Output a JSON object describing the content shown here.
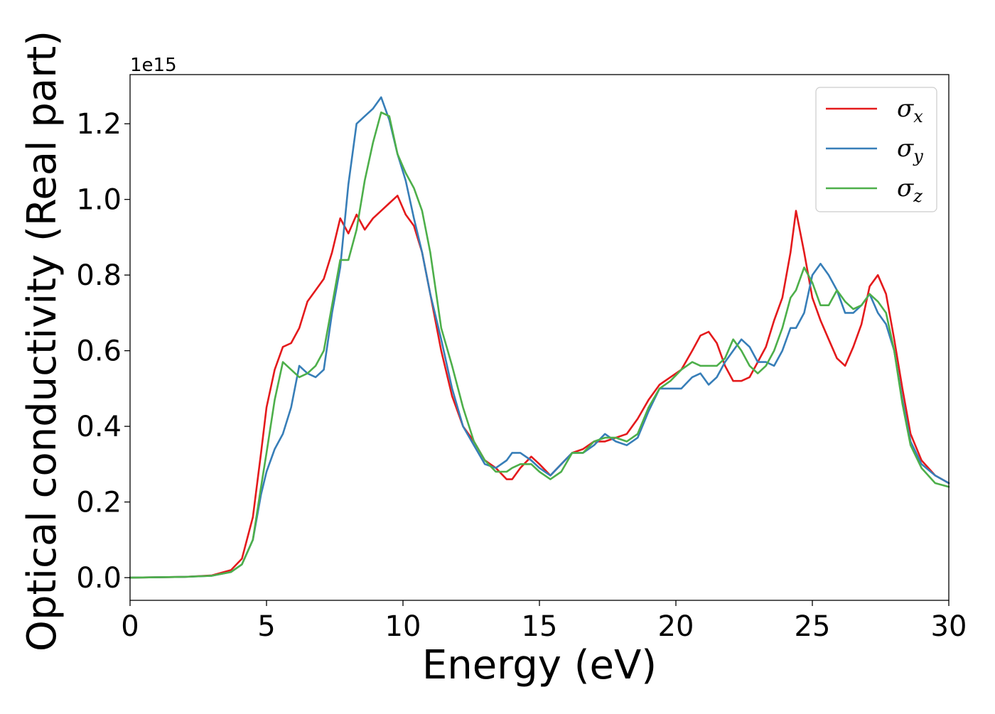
{
  "chart_data": {
    "type": "line",
    "xlabel": "Energy (eV)",
    "ylabel": "Optical conductivity (Real part)",
    "y_offset_text": "1e15",
    "xlim": [
      0,
      30
    ],
    "ylim": [
      -0.06,
      1.33
    ],
    "x_ticks": [
      0,
      5,
      10,
      15,
      20,
      25,
      30
    ],
    "x_tick_labels": [
      "0",
      "5",
      "10",
      "15",
      "20",
      "25",
      "30"
    ],
    "y_ticks": [
      0.0,
      0.2,
      0.4,
      0.6,
      0.8,
      1.0,
      1.2
    ],
    "y_tick_labels": [
      "0.0",
      "0.2",
      "0.4",
      "0.6",
      "0.8",
      "1.0",
      "1.2"
    ],
    "grid": false,
    "legend_position": "top-right",
    "series": [
      {
        "name": "σx",
        "symbol": "σ",
        "subscript": "x",
        "color": "#e41a1c",
        "x": [
          0,
          2,
          3,
          3.7,
          4.1,
          4.5,
          4.8,
          5.0,
          5.3,
          5.6,
          5.9,
          6.2,
          6.5,
          6.8,
          7.1,
          7.4,
          7.7,
          8.0,
          8.3,
          8.6,
          8.9,
          9.2,
          9.5,
          9.8,
          10.1,
          10.4,
          10.7,
          11.0,
          11.4,
          11.8,
          12.2,
          12.6,
          13.0,
          13.4,
          13.8,
          14.0,
          14.3,
          14.7,
          15.0,
          15.4,
          15.8,
          16.2,
          16.6,
          17.0,
          17.4,
          17.8,
          18.2,
          18.6,
          19.0,
          19.4,
          19.8,
          20.2,
          20.6,
          20.9,
          21.2,
          21.5,
          21.8,
          22.1,
          22.4,
          22.7,
          23.0,
          23.3,
          23.6,
          23.9,
          24.2,
          24.4,
          24.7,
          25.0,
          25.3,
          25.6,
          25.9,
          26.2,
          26.5,
          26.8,
          27.1,
          27.4,
          27.7,
          28.0,
          28.3,
          28.6,
          29.0,
          29.5,
          30.0
        ],
        "y": [
          0.0,
          0.002,
          0.006,
          0.02,
          0.05,
          0.16,
          0.33,
          0.45,
          0.55,
          0.61,
          0.62,
          0.66,
          0.73,
          0.76,
          0.79,
          0.86,
          0.95,
          0.91,
          0.96,
          0.92,
          0.95,
          0.97,
          0.99,
          1.01,
          0.96,
          0.93,
          0.86,
          0.75,
          0.6,
          0.48,
          0.4,
          0.36,
          0.31,
          0.29,
          0.26,
          0.26,
          0.29,
          0.32,
          0.3,
          0.27,
          0.3,
          0.33,
          0.34,
          0.36,
          0.36,
          0.37,
          0.38,
          0.42,
          0.47,
          0.51,
          0.53,
          0.55,
          0.6,
          0.64,
          0.65,
          0.62,
          0.56,
          0.52,
          0.52,
          0.53,
          0.57,
          0.61,
          0.68,
          0.74,
          0.86,
          0.97,
          0.86,
          0.74,
          0.68,
          0.63,
          0.58,
          0.56,
          0.61,
          0.67,
          0.77,
          0.8,
          0.75,
          0.63,
          0.5,
          0.38,
          0.31,
          0.27,
          0.25
        ]
      },
      {
        "name": "σy",
        "symbol": "σ",
        "subscript": "y",
        "color": "#377eb8",
        "x": [
          0,
          2,
          3,
          3.7,
          4.1,
          4.5,
          4.8,
          5.0,
          5.3,
          5.6,
          5.9,
          6.2,
          6.5,
          6.8,
          7.1,
          7.4,
          7.7,
          8.0,
          8.3,
          8.6,
          8.9,
          9.2,
          9.5,
          9.8,
          10.1,
          10.4,
          10.7,
          11.0,
          11.4,
          11.8,
          12.2,
          12.6,
          13.0,
          13.4,
          13.8,
          14.0,
          14.3,
          14.7,
          15.0,
          15.4,
          15.8,
          16.2,
          16.6,
          17.0,
          17.4,
          17.8,
          18.2,
          18.6,
          19.0,
          19.4,
          19.8,
          20.2,
          20.6,
          20.9,
          21.2,
          21.5,
          21.8,
          22.1,
          22.4,
          22.7,
          23.0,
          23.3,
          23.6,
          23.9,
          24.2,
          24.4,
          24.7,
          25.0,
          25.3,
          25.6,
          25.9,
          26.2,
          26.5,
          26.8,
          27.1,
          27.4,
          27.7,
          28.0,
          28.3,
          28.6,
          29.0,
          29.5,
          30.0
        ],
        "y": [
          0.0,
          0.002,
          0.005,
          0.015,
          0.035,
          0.1,
          0.22,
          0.28,
          0.34,
          0.38,
          0.45,
          0.56,
          0.54,
          0.53,
          0.55,
          0.7,
          0.82,
          1.04,
          1.2,
          1.22,
          1.24,
          1.27,
          1.21,
          1.12,
          1.05,
          0.95,
          0.86,
          0.75,
          0.63,
          0.5,
          0.4,
          0.35,
          0.3,
          0.29,
          0.31,
          0.33,
          0.33,
          0.31,
          0.29,
          0.27,
          0.3,
          0.33,
          0.33,
          0.35,
          0.38,
          0.36,
          0.35,
          0.37,
          0.44,
          0.5,
          0.5,
          0.5,
          0.53,
          0.54,
          0.51,
          0.53,
          0.57,
          0.6,
          0.63,
          0.61,
          0.57,
          0.57,
          0.56,
          0.6,
          0.66,
          0.66,
          0.7,
          0.8,
          0.83,
          0.8,
          0.76,
          0.7,
          0.7,
          0.72,
          0.75,
          0.7,
          0.67,
          0.6,
          0.47,
          0.36,
          0.3,
          0.27,
          0.25
        ]
      },
      {
        "name": "σz",
        "symbol": "σ",
        "subscript": "z",
        "color": "#4daf4a",
        "x": [
          0,
          2,
          3,
          3.7,
          4.1,
          4.5,
          4.8,
          5.0,
          5.3,
          5.6,
          5.9,
          6.2,
          6.5,
          6.8,
          7.1,
          7.4,
          7.7,
          8.0,
          8.3,
          8.6,
          8.9,
          9.2,
          9.5,
          9.8,
          10.1,
          10.4,
          10.7,
          11.0,
          11.4,
          11.8,
          12.2,
          12.6,
          13.0,
          13.4,
          13.8,
          14.0,
          14.3,
          14.7,
          15.0,
          15.4,
          15.8,
          16.2,
          16.6,
          17.0,
          17.4,
          17.8,
          18.2,
          18.6,
          19.0,
          19.4,
          19.8,
          20.2,
          20.6,
          20.9,
          21.2,
          21.5,
          21.8,
          22.1,
          22.4,
          22.7,
          23.0,
          23.3,
          23.6,
          23.9,
          24.2,
          24.4,
          24.7,
          25.0,
          25.3,
          25.6,
          25.9,
          26.2,
          26.5,
          26.8,
          27.1,
          27.4,
          27.7,
          28.0,
          28.3,
          28.6,
          29.0,
          29.5,
          30.0
        ],
        "y": [
          0.0,
          0.002,
          0.005,
          0.015,
          0.035,
          0.1,
          0.24,
          0.33,
          0.47,
          0.57,
          0.55,
          0.53,
          0.54,
          0.56,
          0.6,
          0.72,
          0.84,
          0.84,
          0.92,
          1.05,
          1.15,
          1.23,
          1.22,
          1.12,
          1.07,
          1.03,
          0.97,
          0.86,
          0.66,
          0.56,
          0.45,
          0.36,
          0.31,
          0.28,
          0.28,
          0.29,
          0.3,
          0.3,
          0.28,
          0.26,
          0.28,
          0.33,
          0.33,
          0.36,
          0.37,
          0.37,
          0.36,
          0.38,
          0.45,
          0.5,
          0.52,
          0.55,
          0.57,
          0.56,
          0.56,
          0.56,
          0.58,
          0.63,
          0.6,
          0.56,
          0.54,
          0.56,
          0.6,
          0.66,
          0.74,
          0.76,
          0.82,
          0.78,
          0.72,
          0.72,
          0.76,
          0.73,
          0.71,
          0.72,
          0.75,
          0.73,
          0.7,
          0.6,
          0.46,
          0.35,
          0.29,
          0.25,
          0.24
        ]
      }
    ]
  }
}
